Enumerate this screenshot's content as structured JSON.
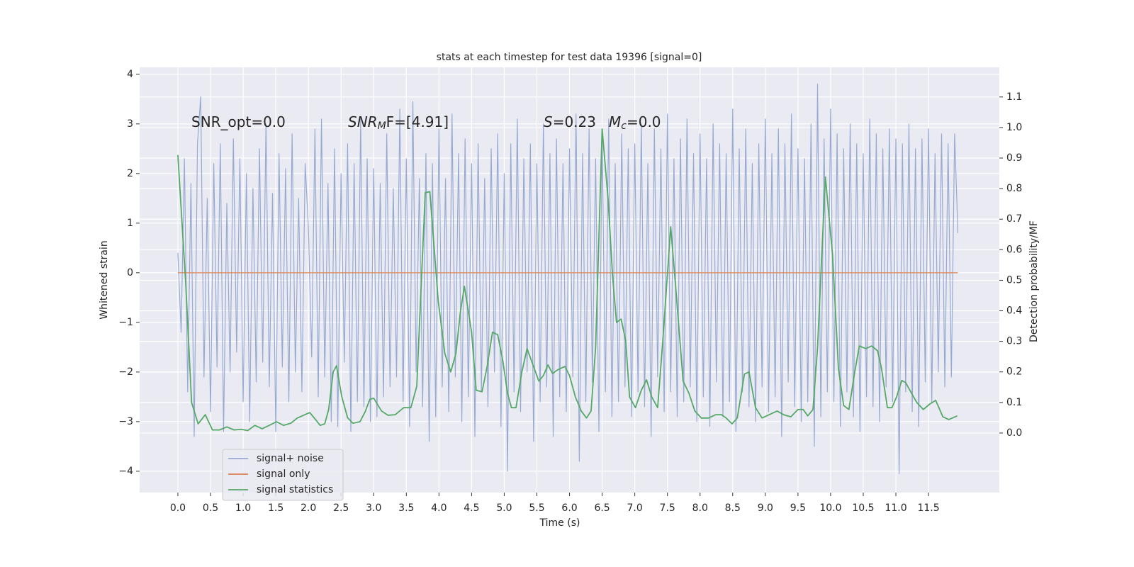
{
  "chart_data": {
    "type": "line",
    "title": "stats at each timestep for test data 19396 [signal=0]",
    "xlabel": "Time (s)",
    "ylabel": "Whitened strain",
    "y2label": "Detection probability/MF",
    "annotations": [
      {
        "text": "SNR_opt=0.0"
      },
      {
        "text": "SNR",
        "sub": "M",
        "tail": "F=[4.91]"
      },
      {
        "text": "S",
        "tail": "=0.23"
      },
      {
        "text": "M",
        "sub": "c",
        "tail": "=0.0"
      }
    ],
    "xlim": [
      -0.586,
      12.585
    ],
    "ylim": [
      -4.43,
      4.14
    ],
    "y2lim": [
      -0.195,
      1.197
    ],
    "xticks": [
      {
        "value": 0,
        "label": "0.0"
      },
      {
        "value": 0.5,
        "label": "0.5"
      },
      {
        "value": 1,
        "label": "1.0"
      },
      {
        "value": 1.5,
        "label": "1.5"
      },
      {
        "value": 2,
        "label": "2.0"
      },
      {
        "value": 2.5,
        "label": "2.5"
      },
      {
        "value": 3,
        "label": "3.0"
      },
      {
        "value": 3.5,
        "label": "3.5"
      },
      {
        "value": 4,
        "label": "4.0"
      },
      {
        "value": 4.5,
        "label": "4.5"
      },
      {
        "value": 5,
        "label": "5.0"
      },
      {
        "value": 5.5,
        "label": "5.5"
      },
      {
        "value": 6,
        "label": "6.0"
      },
      {
        "value": 6.5,
        "label": "6.5"
      },
      {
        "value": 7,
        "label": "7.0"
      },
      {
        "value": 7.5,
        "label": "7.5"
      },
      {
        "value": 8,
        "label": "8.0"
      },
      {
        "value": 8.5,
        "label": "8.5"
      },
      {
        "value": 9,
        "label": "9.0"
      },
      {
        "value": 9.5,
        "label": "9.5"
      },
      {
        "value": 10,
        "label": "10.0"
      },
      {
        "value": 10.5,
        "label": "10.5"
      },
      {
        "value": 11,
        "label": "11.0"
      },
      {
        "value": 11.5,
        "label": "11.5"
      }
    ],
    "yticks": [
      {
        "value": -4,
        "label": "−4"
      },
      {
        "value": -3,
        "label": "−3"
      },
      {
        "value": -2,
        "label": "−2"
      },
      {
        "value": -1,
        "label": "−1"
      },
      0,
      1,
      2,
      3,
      4
    ],
    "y2ticks": [
      {
        "value": 0,
        "label": "0.0"
      },
      0.1,
      0.2,
      0.3,
      0.4,
      0.5,
      0.6,
      0.7,
      0.8,
      0.9,
      {
        "value": 1,
        "label": "1.0"
      },
      1.1
    ],
    "grid": true,
    "legend": "lower left",
    "series": [
      {
        "name": "signal+ noise",
        "color": "#97aad2",
        "x": [
          0,
          0.05,
          0.1,
          0.15,
          0.2,
          0.25,
          0.3,
          0.35,
          0.4,
          0.45,
          0.5,
          0.55,
          0.6,
          0.65,
          0.7,
          0.75,
          0.8,
          0.85,
          0.9,
          0.95,
          1,
          1.05,
          1.1,
          1.15,
          1.2,
          1.25,
          1.3,
          1.35,
          1.4,
          1.45,
          1.5,
          1.55,
          1.6,
          1.65,
          1.7,
          1.75,
          1.8,
          1.85,
          1.9,
          1.95,
          2,
          2.05,
          2.1,
          2.15,
          2.2,
          2.25,
          2.3,
          2.35,
          2.4,
          2.45,
          2.5,
          2.55,
          2.6,
          2.65,
          2.7,
          2.75,
          2.8,
          2.85,
          2.9,
          2.95,
          3,
          3.05,
          3.1,
          3.15,
          3.2,
          3.25,
          3.3,
          3.35,
          3.4,
          3.45,
          3.5,
          3.55,
          3.6,
          3.65,
          3.7,
          3.75,
          3.8,
          3.85,
          3.9,
          3.95,
          4,
          4.05,
          4.1,
          4.15,
          4.2,
          4.25,
          4.3,
          4.35,
          4.4,
          4.45,
          4.5,
          4.55,
          4.6,
          4.65,
          4.7,
          4.75,
          4.8,
          4.85,
          4.9,
          4.95,
          5,
          5.05,
          5.1,
          5.15,
          5.2,
          5.25,
          5.3,
          5.35,
          5.4,
          5.45,
          5.5,
          5.55,
          5.6,
          5.65,
          5.7,
          5.75,
          5.8,
          5.85,
          5.9,
          5.95,
          6,
          6.05,
          6.1,
          6.15,
          6.2,
          6.25,
          6.3,
          6.35,
          6.4,
          6.45,
          6.5,
          6.55,
          6.6,
          6.65,
          6.7,
          6.75,
          6.8,
          6.85,
          6.9,
          6.95,
          7,
          7.05,
          7.1,
          7.15,
          7.2,
          7.25,
          7.3,
          7.35,
          7.4,
          7.45,
          7.5,
          7.55,
          7.6,
          7.65,
          7.7,
          7.75,
          7.8,
          7.85,
          7.9,
          7.95,
          8,
          8.05,
          8.1,
          8.15,
          8.2,
          8.25,
          8.3,
          8.35,
          8.4,
          8.45,
          8.5,
          8.55,
          8.6,
          8.65,
          8.7,
          8.75,
          8.8,
          8.85,
          8.9,
          8.95,
          9,
          9.05,
          9.1,
          9.15,
          9.2,
          9.25,
          9.3,
          9.35,
          9.4,
          9.45,
          9.5,
          9.55,
          9.6,
          9.65,
          9.7,
          9.75,
          9.8,
          9.85,
          9.9,
          9.95,
          10,
          10.05,
          10.1,
          10.15,
          10.2,
          10.25,
          10.3,
          10.35,
          10.4,
          10.45,
          10.5,
          10.55,
          10.6,
          10.65,
          10.7,
          10.75,
          10.8,
          10.85,
          10.9,
          10.95,
          11,
          11.05,
          11.1,
          11.15,
          11.2,
          11.25,
          11.3,
          11.35,
          11.4,
          11.45,
          11.5,
          11.55,
          11.6,
          11.65,
          11.7,
          11.75,
          11.8,
          11.85,
          11.9,
          11.95
        ],
        "values": [
          0.4,
          -1.2,
          2.3,
          -2.4,
          1.8,
          -3.3,
          2.6,
          3.55,
          -2.1,
          1.5,
          -2.8,
          2.2,
          -1.9,
          2.6,
          -3.2,
          1.4,
          -2.0,
          2.7,
          -1.6,
          2.3,
          -2.6,
          2.0,
          -3.0,
          1.7,
          -2.2,
          2.5,
          -1.8,
          3.0,
          -2.3,
          1.6,
          -3.2,
          2.4,
          -1.9,
          2.1,
          -2.6,
          2.8,
          -2.0,
          1.5,
          -2.4,
          2.2,
          0.9,
          -1.7,
          2.9,
          -2.5,
          3.1,
          -2.1,
          1.8,
          -3.0,
          2.5,
          -3.1,
          2.0,
          -1.8,
          2.6,
          -3.2,
          2.2,
          -2.6,
          3.1,
          -2.7,
          2.3,
          -3.0,
          2.1,
          -2.9,
          1.8,
          -2.5,
          2.8,
          -2.3,
          1.7,
          -2.1,
          3.3,
          -2.6,
          2.3,
          -3.1,
          3.45,
          -2.0,
          1.9,
          -2.7,
          2.4,
          -3.4,
          2.2,
          -2.9,
          2.9,
          -2.3,
          1.9,
          -2.8,
          3.2,
          -2.1,
          2.4,
          -3.0,
          2.7,
          -2.5,
          2.2,
          -3.3,
          2.6,
          -2.4,
          1.9,
          -2.7,
          2.5,
          -2.0,
          2.8,
          -3.1,
          2.0,
          -4.0,
          2.6,
          -2.4,
          3.1,
          -2.8,
          2.3,
          -2.0,
          2.6,
          -3.4,
          2.2,
          -2.6,
          3.0,
          -2.3,
          2.4,
          -3.3,
          2.7,
          -2.5,
          2.2,
          -2.8,
          2.5,
          -2.1,
          3.2,
          -3.8,
          2.4,
          -2.6,
          2.9,
          -2.2,
          2.3,
          -3.2,
          2.7,
          -2.4,
          3.1,
          -2.9,
          2.2,
          -2.6,
          2.8,
          -2.3,
          2.5,
          -2.9,
          2.6,
          -2.4,
          3.0,
          -2.7,
          2.2,
          -3.3,
          2.9,
          -2.1,
          2.5,
          -2.8,
          3.2,
          -2.4,
          2.3,
          -2.9,
          2.7,
          -2.6,
          3.1,
          -2.3,
          2.4,
          -3.0,
          2.8,
          -2.5,
          2.3,
          -3.1,
          3.0,
          -2.2,
          2.6,
          -2.9,
          2.4,
          -2.6,
          3.3,
          -3.2,
          2.5,
          -2.4,
          2.9,
          -2.7,
          2.2,
          -3.0,
          2.6,
          -2.3,
          3.1,
          -2.8,
          2.4,
          -2.5,
          2.9,
          -3.3,
          2.6,
          -2.2,
          3.2,
          -2.7,
          2.5,
          -3.0,
          2.3,
          -2.6,
          3.0,
          -3.5,
          3.8,
          -2.9,
          2.7,
          -2.4,
          3.3,
          -2.6,
          2.8,
          -3.1,
          2.5,
          -2.4,
          3.0,
          -2.9,
          2.6,
          -3.2,
          2.4,
          -2.5,
          3.1,
          -2.7,
          2.8,
          -3.0,
          2.5,
          -2.3,
          2.9,
          -2.6,
          2.7,
          -4.05,
          2.6,
          -2.4,
          3.0,
          -2.8,
          2.5,
          -3.1,
          2.7,
          -2.2,
          2.9,
          -2.6,
          2.4,
          -2.0,
          2.8,
          -2.3,
          2.6,
          -2.1,
          2.8,
          0.8
        ]
      },
      {
        "name": "signal only",
        "color": "#dd8452",
        "x": [
          0,
          11.95
        ],
        "values": [
          0,
          0
        ]
      },
      {
        "name": "signal statistics",
        "color": "#55a868",
        "axis": "y2",
        "x": [
          0,
          0.12,
          0.21,
          0.31,
          0.42,
          0.53,
          0.64,
          0.75,
          0.86,
          0.97,
          1.07,
          1.18,
          1.29,
          1.4,
          1.51,
          1.62,
          1.73,
          1.83,
          2.02,
          2.09,
          2.18,
          2.25,
          2.31,
          2.38,
          2.43,
          2.51,
          2.6,
          2.68,
          2.79,
          2.87,
          2.94,
          3.0,
          3.12,
          3.22,
          3.33,
          3.46,
          3.57,
          3.66,
          3.79,
          3.86,
          3.99,
          4.09,
          4.18,
          4.26,
          4.33,
          4.39,
          4.5,
          4.57,
          4.66,
          4.74,
          4.82,
          4.9,
          4.98,
          5.05,
          5.11,
          5.18,
          5.27,
          5.35,
          5.44,
          5.53,
          5.6,
          5.67,
          5.74,
          5.82,
          5.93,
          6.0,
          6.09,
          6.18,
          6.26,
          6.33,
          6.4,
          6.5,
          6.59,
          6.66,
          6.72,
          6.79,
          6.86,
          6.92,
          7.01,
          7.1,
          7.18,
          7.26,
          7.35,
          7.43,
          7.55,
          7.64,
          7.74,
          7.83,
          7.92,
          8.02,
          8.13,
          8.24,
          8.33,
          8.4,
          8.49,
          8.57,
          8.68,
          8.75,
          8.85,
          8.95,
          9.06,
          9.18,
          9.28,
          9.39,
          9.5,
          9.58,
          9.65,
          9.73,
          9.8,
          9.92,
          10.03,
          10.12,
          10.2,
          10.28,
          10.37,
          10.44,
          10.54,
          10.63,
          10.72,
          10.78,
          10.87,
          10.94,
          11.01,
          11.09,
          11.15,
          11.24,
          11.32,
          11.42,
          11.52,
          11.61,
          11.72,
          11.81,
          11.94
        ],
        "values": [
          0.91,
          0.49,
          0.1,
          0.03,
          0.06,
          0.01,
          0.01,
          0.02,
          0.01,
          0.012,
          0.008,
          0.025,
          0.014,
          0.025,
          0.037,
          0.025,
          0.032,
          0.049,
          0.067,
          0.049,
          0.025,
          0.03,
          0.077,
          0.2,
          0.22,
          0.12,
          0.05,
          0.032,
          0.037,
          0.07,
          0.11,
          0.114,
          0.072,
          0.058,
          0.06,
          0.083,
          0.083,
          0.153,
          0.787,
          0.79,
          0.43,
          0.26,
          0.2,
          0.26,
          0.4,
          0.48,
          0.33,
          0.14,
          0.135,
          0.22,
          0.33,
          0.322,
          0.234,
          0.13,
          0.083,
          0.083,
          0.2,
          0.276,
          0.223,
          0.17,
          0.188,
          0.223,
          0.195,
          0.207,
          0.218,
          0.188,
          0.118,
          0.072,
          0.049,
          0.072,
          0.28,
          0.995,
          0.768,
          0.513,
          0.362,
          0.373,
          0.304,
          0.118,
          0.083,
          0.14,
          0.174,
          0.118,
          0.083,
          0.304,
          0.675,
          0.443,
          0.17,
          0.13,
          0.072,
          0.049,
          0.049,
          0.06,
          0.06,
          0.049,
          0.03,
          0.049,
          0.193,
          0.2,
          0.083,
          0.049,
          0.06,
          0.072,
          0.06,
          0.053,
          0.077,
          0.077,
          0.056,
          0.077,
          0.28,
          0.838,
          0.582,
          0.211,
          0.09,
          0.077,
          0.2,
          0.285,
          0.276,
          0.285,
          0.269,
          0.211,
          0.083,
          0.083,
          0.118,
          0.172,
          0.165,
          0.13,
          0.1,
          0.077,
          0.095,
          0.107,
          0.053,
          0.044,
          0.056
        ]
      }
    ]
  }
}
